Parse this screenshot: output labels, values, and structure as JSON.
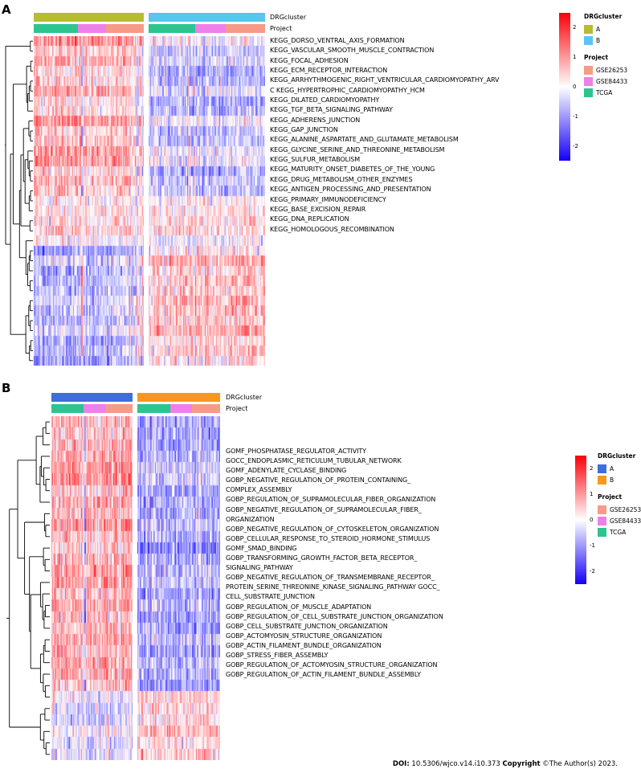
{
  "figure": {
    "panel_a_label": "A",
    "panel_b_label": "B",
    "footer": {
      "doi_label": "DOI:",
      "doi_value": " 10.5306/wjco.v14.i10.373 ",
      "copyright_label": "Copyright",
      "copyright_value": " ©The Author(s) 2023."
    }
  },
  "chart_data": [
    {
      "type": "heatmap",
      "panel": "A",
      "annotation_labels": [
        "DRGcluster",
        "Project"
      ],
      "drg_clusters": [
        {
          "name": "A",
          "color": "#b7bc32"
        },
        {
          "name": "B",
          "color": "#59c6ef"
        }
      ],
      "projects": [
        {
          "name": "GSE26253",
          "color": "#f69b88"
        },
        {
          "name": "GSE84433",
          "color": "#ee80ea"
        },
        {
          "name": "TCGA",
          "color": "#2ec48f"
        }
      ],
      "project_bar_order": [
        "TCGA",
        "GSE84433",
        "GSE26253"
      ],
      "project_bar_fractions": [
        0.4,
        0.26,
        0.34
      ],
      "legend": {
        "drg_title": "DRGcluster",
        "project_title": "Project",
        "colorbar_ticks": [
          "2",
          "1",
          "0",
          "-1",
          "-2"
        ],
        "colorbar_tick_values": [
          2,
          1,
          0,
          -1,
          -2
        ],
        "colorbar_range": [
          -2.5,
          2.5
        ],
        "colorbar_colors": [
          "#fb0007",
          "#ffffff",
          "#1400f5"
        ]
      },
      "row_labels": [
        "KEGG_DORSO_VENTRAL_AXIS_FORMATION",
        "KEGG_VASCULAR_SMOOTH_MUSCLE_CONTRACTION",
        "KEGG_FOCAL_ADHESION",
        "KEGG_ECM_RECEPTOR_INTERACTION",
        "KEGG_ARRHYTHMOGENIC_RIGHT_VENTRICULAR_CARDIOMYOPATHY_ARV",
        "C KEGG_HYPERTROPHIC_CARDIOMYOPATHY_HCM",
        "KEGG_DILATED_CARDIOMYOPATHY",
        "KEGG_TGF_BETA_SIGNALING_PATHWAY",
        "KEGG_ADHERENS_JUNCTION",
        "KEGG_GAP_JUNCTION",
        "KEGG_ALANINE_ASPARTATE_AND_GLUTAMATE_METABOLISM",
        "KEGG_GLYCINE_SERINE_AND_THREONINE_METABOLISM",
        "KEGG_SULFUR_METABOLISM",
        "KEGG_MATURITY_ONSET_DIABETES_OF_THE_YOUNG",
        "KEGG_DRUG_METABOLISM_OTHER_ENZYMES",
        "KEGG_ANTIGEN_PROCESSING_AND_PRESENTATION",
        "KEGG_PRIMARY_IMMUNODEFICIENCY",
        "KEGG_BASE_EXCISION_REPAIR",
        "KEGG_DNA_REPLICATION",
        "KEGG_HOMOLOGOUS_RECOMBINATION"
      ],
      "n_rows": 33,
      "n_cols_per_block": [
        120,
        125
      ],
      "row_block_means_estimated": [
        {
          "rows": [
            0,
            15
          ],
          "cluster_A": 0.65,
          "cluster_B": -0.45
        },
        {
          "rows": [
            16,
            20
          ],
          "cluster_A": 0.15,
          "cluster_B": 0.15
        },
        {
          "rows": [
            21,
            32
          ],
          "cluster_A": -0.7,
          "cluster_B": 0.5
        }
      ],
      "seed": 42
    },
    {
      "type": "heatmap",
      "panel": "B",
      "annotation_labels": [
        "DRGcluster",
        "Project"
      ],
      "drg_clusters": [
        {
          "name": "A",
          "color": "#3f6fd6"
        },
        {
          "name": "B",
          "color": "#f6981f"
        }
      ],
      "projects": [
        {
          "name": "GSE26253",
          "color": "#f69b88"
        },
        {
          "name": "GSE84433",
          "color": "#ee80ea"
        },
        {
          "name": "TCGA",
          "color": "#2ec48f"
        }
      ],
      "project_bar_order": [
        "TCGA",
        "GSE84433",
        "GSE26253"
      ],
      "project_bar_fractions": [
        0.4,
        0.26,
        0.34
      ],
      "legend": {
        "drg_title": "DRGcluster",
        "project_title": "Project",
        "colorbar_ticks": [
          "2",
          "1",
          "0",
          "-1",
          "-2"
        ],
        "colorbar_tick_values": [
          2,
          1,
          0,
          -1,
          -2
        ],
        "colorbar_range": [
          -2.5,
          2.5
        ],
        "colorbar_colors": [
          "#fb0007",
          "#ffffff",
          "#1400f5"
        ]
      },
      "row_labels": [
        "GOMF_PHOSPHATASE_REGULATOR_ACTIVITY",
        "GOCC_ENDOPLASMIC_RETICULUM_TUBULAR_NETWORK",
        "GOMF_ADENYLATE_CYCLASE_BINDING",
        "GOBP_NEGATIVE_REGULATION_OF_PROTEIN_CONTAINING_",
        "COMPLEX_ASSEMBLY",
        "GOBP_REGULATION_OF_SUPRAMOLECULAR_FIBER_ORGANIZATION",
        "GOBP_NEGATIVE_REGULATION_OF_SUPRAMOLECULAR_FIBER_",
        "ORGANIZATION",
        "GOBP_NEGATIVE_REGULATION_OF_CYTOSKELETON_ORGANIZATION",
        "GOBP_CELLULAR_RESPONSE_TO_STEROID_HORMONE_STIMULUS",
        "GOMF_SMAD_BINDING",
        "GOBP_TRANSFORMING_GROWTH_FACTOR_BETA_RECEPTOR_",
        "SIGNALING_PATHWAY",
        "GOBP_NEGATIVE_REGULATION_OF_TRANSMEMBRANE_RECEPTOR_",
        "PROTEIN_SERINE_THREONINE_KINASE_SIGNALING_PATHWAY GOCC_",
        "CELL_SUBSTRATE_JUNCTION",
        "GOBP_REGULATION_OF_MUSCLE_ADAPTATION",
        "GOBP_REGULATION_OF_CELL_SUBSTRATE_JUNCTION_ORGANIZATION",
        "GOBP_CELL_SUBSTRATE_JUNCTION_ORGANIZATION",
        "GOBP_ACTOMYOSIN_STRUCTURE_ORGANIZATION",
        "GOBP_ACTIN_FILAMENT_BUNDLE_ORGANIZATION",
        "GOBP_STRESS_FIBER_ASSEMBLY",
        "GOBP_REGULATION_OF_ACTOMYOSIN_STRUCTURE_ORGANIZATION",
        "GOBP_REGULATION_OF_ACTIN_FILAMENT_BUNDLE_ASSEMBLY"
      ],
      "n_rows": 30,
      "n_cols_per_block": [
        95,
        95
      ],
      "row_block_means_estimated": [
        {
          "rows": [
            0,
            23
          ],
          "cluster_A": 0.75,
          "cluster_B": -0.8
        },
        {
          "rows": [
            24,
            29
          ],
          "cluster_A": -0.4,
          "cluster_B": 0.35
        }
      ],
      "seed": 77
    }
  ]
}
